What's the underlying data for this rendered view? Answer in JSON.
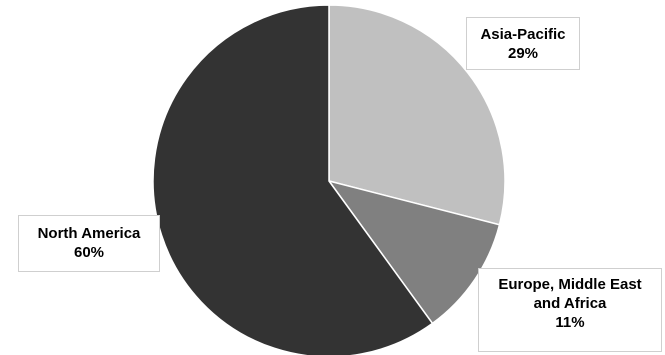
{
  "chart_data": {
    "type": "pie",
    "title": "",
    "legend": "none",
    "start_angle_deg": 0,
    "direction": "clockwise",
    "slices": [
      {
        "label_lines": [
          "Asia-Pacific"
        ],
        "value": 29,
        "percent_label": "29%",
        "color": "#c0c0c0"
      },
      {
        "label_lines": [
          "Europe, Middle East",
          "and Africa"
        ],
        "value": 11,
        "percent_label": "11%",
        "color": "#808080"
      },
      {
        "label_lines": [
          "North America"
        ],
        "value": 60,
        "percent_label": "60%",
        "color": "#333333"
      }
    ]
  }
}
